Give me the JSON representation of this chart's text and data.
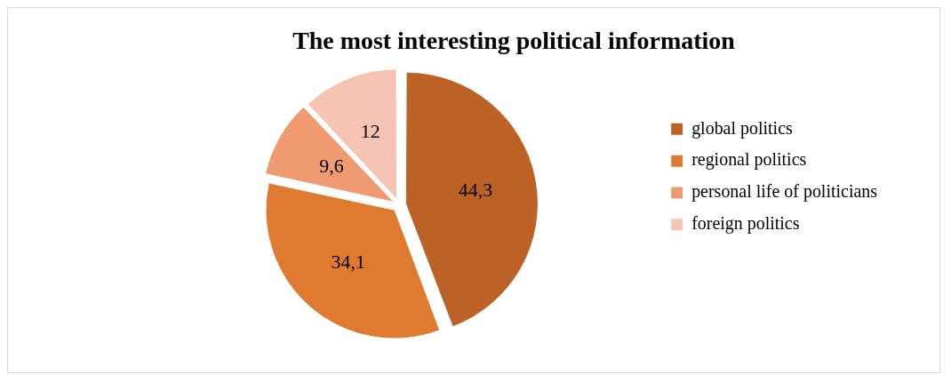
{
  "chart_data": {
    "type": "pie",
    "title": "The most interesting political information",
    "categories": [
      "global politics",
      "regional politics",
      "personal life of politicians",
      "foreign politics"
    ],
    "values": [
      44.3,
      34.1,
      9.6,
      12
    ],
    "value_labels": [
      "44,3",
      "34,1",
      "9,6",
      "12"
    ],
    "colors": [
      "#bc6226",
      "#e07a30",
      "#ef9a70",
      "#f5c4b2"
    ],
    "legend": "right"
  }
}
